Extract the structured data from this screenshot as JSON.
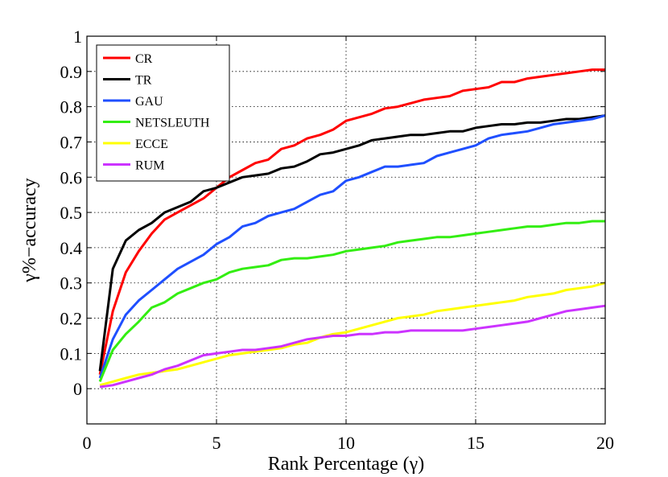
{
  "chart_data": {
    "type": "line",
    "title": "",
    "xlabel": "Rank Percentage (γ)",
    "ylabel": "γ%−accuracy",
    "xlim": [
      0,
      20
    ],
    "ylim": [
      -0.1,
      1
    ],
    "xticks": [
      0,
      5,
      10,
      15,
      20
    ],
    "yticks": [
      0,
      0.1,
      0.2,
      0.3,
      0.4,
      0.5,
      0.6,
      0.7,
      0.8,
      0.9,
      1
    ],
    "ytick_labels": [
      "0",
      "0.1",
      "0.2",
      "0.3",
      "0.4",
      "0.5",
      "0.6",
      "0.7",
      "0.8",
      "0.9",
      "1"
    ],
    "grid": true,
    "legend_position": "top-left",
    "x": [
      0.5,
      1,
      1.5,
      2,
      2.5,
      3,
      3.5,
      4,
      4.5,
      5,
      5.5,
      6,
      6.5,
      7,
      7.5,
      8,
      8.5,
      9,
      9.5,
      10,
      10.5,
      11,
      11.5,
      12,
      12.5,
      13,
      13.5,
      14,
      14.5,
      15,
      15.5,
      16,
      16.5,
      17,
      17.5,
      18,
      18.5,
      19,
      19.5,
      20
    ],
    "series": [
      {
        "name": "CR",
        "color": "#ff0000",
        "values": [
          0.04,
          0.22,
          0.33,
          0.39,
          0.44,
          0.48,
          0.5,
          0.52,
          0.54,
          0.57,
          0.6,
          0.62,
          0.64,
          0.65,
          0.68,
          0.69,
          0.71,
          0.72,
          0.735,
          0.76,
          0.77,
          0.78,
          0.795,
          0.8,
          0.81,
          0.82,
          0.825,
          0.83,
          0.845,
          0.85,
          0.855,
          0.87,
          0.87,
          0.88,
          0.885,
          0.89,
          0.895,
          0.9,
          0.905,
          0.905
        ]
      },
      {
        "name": "TR",
        "color": "#000000",
        "values": [
          0.05,
          0.34,
          0.42,
          0.45,
          0.47,
          0.5,
          0.515,
          0.53,
          0.56,
          0.57,
          0.585,
          0.6,
          0.605,
          0.61,
          0.625,
          0.63,
          0.645,
          0.665,
          0.67,
          0.68,
          0.69,
          0.705,
          0.71,
          0.715,
          0.72,
          0.72,
          0.725,
          0.73,
          0.73,
          0.74,
          0.745,
          0.75,
          0.75,
          0.755,
          0.755,
          0.76,
          0.765,
          0.765,
          0.77,
          0.775
        ]
      },
      {
        "name": "GAU",
        "color": "#1f4fff",
        "values": [
          0.03,
          0.14,
          0.21,
          0.25,
          0.28,
          0.31,
          0.34,
          0.36,
          0.38,
          0.41,
          0.43,
          0.46,
          0.47,
          0.49,
          0.5,
          0.51,
          0.53,
          0.55,
          0.56,
          0.59,
          0.6,
          0.615,
          0.63,
          0.63,
          0.635,
          0.64,
          0.66,
          0.67,
          0.68,
          0.69,
          0.71,
          0.72,
          0.725,
          0.73,
          0.74,
          0.75,
          0.755,
          0.76,
          0.765,
          0.775
        ]
      },
      {
        "name": "NETSLEUTH",
        "color": "#33ee11",
        "values": [
          0.02,
          0.11,
          0.155,
          0.19,
          0.23,
          0.245,
          0.27,
          0.285,
          0.3,
          0.31,
          0.33,
          0.34,
          0.345,
          0.35,
          0.365,
          0.37,
          0.37,
          0.375,
          0.38,
          0.39,
          0.395,
          0.4,
          0.405,
          0.415,
          0.42,
          0.425,
          0.43,
          0.43,
          0.435,
          0.44,
          0.445,
          0.45,
          0.455,
          0.46,
          0.46,
          0.465,
          0.47,
          0.47,
          0.475,
          0.475
        ]
      },
      {
        "name": "ECCE",
        "color": "#ffff00",
        "values": [
          0.01,
          0.02,
          0.03,
          0.04,
          0.045,
          0.05,
          0.055,
          0.065,
          0.075,
          0.085,
          0.095,
          0.1,
          0.105,
          0.11,
          0.115,
          0.125,
          0.13,
          0.145,
          0.155,
          0.16,
          0.17,
          0.18,
          0.19,
          0.2,
          0.205,
          0.21,
          0.22,
          0.225,
          0.23,
          0.235,
          0.24,
          0.245,
          0.25,
          0.26,
          0.265,
          0.27,
          0.28,
          0.285,
          0.29,
          0.3
        ]
      },
      {
        "name": "RUM",
        "color": "#cc33ff",
        "values": [
          0.005,
          0.01,
          0.02,
          0.03,
          0.04,
          0.055,
          0.065,
          0.08,
          0.095,
          0.1,
          0.105,
          0.11,
          0.11,
          0.115,
          0.12,
          0.13,
          0.14,
          0.145,
          0.15,
          0.15,
          0.155,
          0.155,
          0.16,
          0.16,
          0.165,
          0.165,
          0.165,
          0.165,
          0.165,
          0.17,
          0.175,
          0.18,
          0.185,
          0.19,
          0.2,
          0.21,
          0.22,
          0.225,
          0.23,
          0.235
        ]
      }
    ]
  }
}
